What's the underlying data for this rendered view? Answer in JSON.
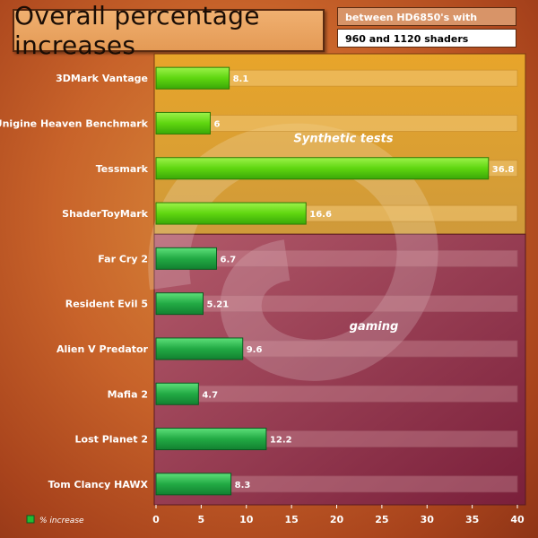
{
  "header": {
    "title": "Overall percentage increases",
    "subtitle_line1": "between HD6850's with",
    "subtitle_line2": "960 and 1120 shaders"
  },
  "legend": {
    "label": "% increase"
  },
  "colors": {
    "synthetic_panel": "#dca030",
    "gaming_panel": "#9a3a55",
    "synthetic_bar": "#66dd11",
    "gaming_bar": "#22aa44"
  },
  "chart_data": {
    "type": "bar",
    "orientation": "horizontal",
    "title": "Overall percentage increases",
    "xlim": [
      0,
      40
    ],
    "xticks": [
      0,
      5,
      10,
      15,
      20,
      25,
      30,
      35,
      40
    ],
    "categories": [
      "3DMark Vantage",
      "Unigine Heaven Benchmark",
      "Tessmark",
      "ShaderToyMark",
      "Far Cry 2",
      "Resident Evil 5",
      "Alien V Predator",
      "Mafia 2",
      "Lost Planet 2",
      "Tom Clancy HAWX"
    ],
    "values": [
      8.1,
      6,
      36.8,
      16.6,
      6.7,
      5.21,
      9.6,
      4.7,
      12.2,
      8.3
    ],
    "value_labels": [
      "8.1",
      "6",
      "36.8",
      "16.6",
      "6.7",
      "5.21",
      "9.6",
      "4.7",
      "12.2",
      "8.3"
    ],
    "groups": [
      {
        "name": "Synthetic tests",
        "start": 0,
        "end": 3
      },
      {
        "name": "gaming",
        "start": 4,
        "end": 9
      }
    ],
    "series_name": "% increase"
  }
}
